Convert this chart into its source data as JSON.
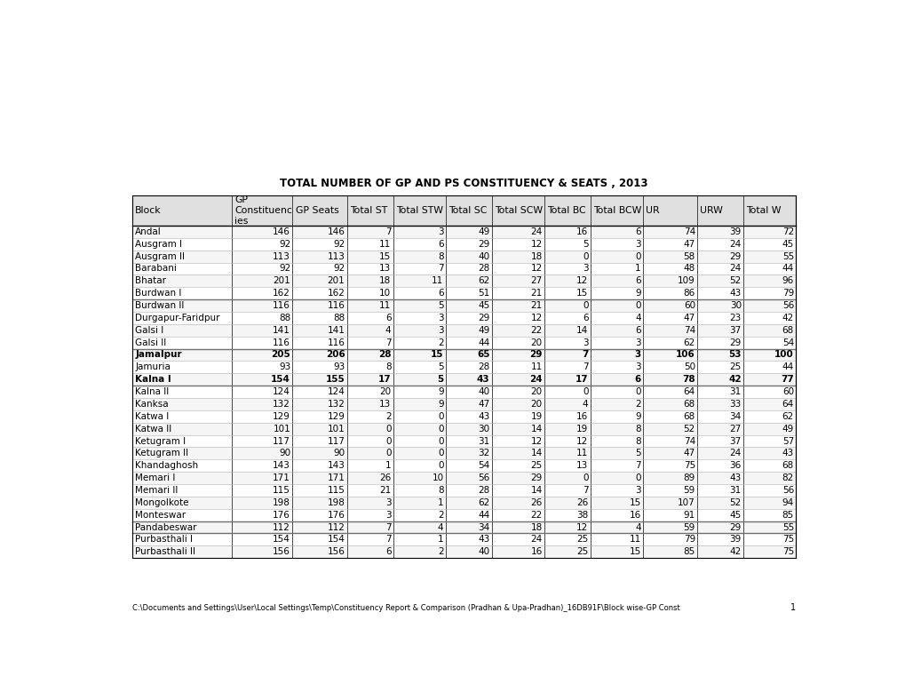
{
  "title": "TOTAL NUMBER OF GP AND PS CONSTITUENCY & SEATS , 2013",
  "footer": "C:\\Documents and Settings\\User\\Local Settings\\Temp\\Constituency Report & Comparison (Pradhan & Upa-Pradhan)_16DB91F\\Block wise-GP Const",
  "footer_page": "1",
  "rows": [
    [
      "Andal",
      146,
      146,
      7,
      3,
      49,
      24,
      16,
      6,
      74,
      39,
      72
    ],
    [
      "Ausgram I",
      92,
      92,
      11,
      6,
      29,
      12,
      5,
      3,
      47,
      24,
      45
    ],
    [
      "Ausgram II",
      113,
      113,
      15,
      8,
      40,
      18,
      0,
      0,
      58,
      29,
      55
    ],
    [
      "Barabani",
      92,
      92,
      13,
      7,
      28,
      12,
      3,
      1,
      48,
      24,
      44
    ],
    [
      "Bhatar",
      201,
      201,
      18,
      11,
      62,
      27,
      12,
      6,
      109,
      52,
      96
    ],
    [
      "Burdwan I",
      162,
      162,
      10,
      6,
      51,
      21,
      15,
      9,
      86,
      43,
      79
    ],
    [
      "Burdwan II",
      116,
      116,
      11,
      5,
      45,
      21,
      0,
      0,
      60,
      30,
      56
    ],
    [
      "Durgapur-Faridpur",
      88,
      88,
      6,
      3,
      29,
      12,
      6,
      4,
      47,
      23,
      42
    ],
    [
      "Galsi I",
      141,
      141,
      4,
      3,
      49,
      22,
      14,
      6,
      74,
      37,
      68
    ],
    [
      "Galsi II",
      116,
      116,
      7,
      2,
      44,
      20,
      3,
      3,
      62,
      29,
      54
    ],
    [
      "Jamalpur",
      205,
      206,
      28,
      15,
      65,
      29,
      7,
      3,
      106,
      53,
      100
    ],
    [
      "Jamuria",
      93,
      93,
      8,
      5,
      28,
      11,
      7,
      3,
      50,
      25,
      44
    ],
    [
      "Kalna I",
      154,
      155,
      17,
      5,
      43,
      24,
      17,
      6,
      78,
      42,
      77
    ],
    [
      "Kalna II",
      124,
      124,
      20,
      9,
      40,
      20,
      0,
      0,
      64,
      31,
      60
    ],
    [
      "Kanksa",
      132,
      132,
      13,
      9,
      47,
      20,
      4,
      2,
      68,
      33,
      64
    ],
    [
      "Katwa I",
      129,
      129,
      2,
      0,
      43,
      19,
      16,
      9,
      68,
      34,
      62
    ],
    [
      "Katwa II",
      101,
      101,
      0,
      0,
      30,
      14,
      19,
      8,
      52,
      27,
      49
    ],
    [
      "Ketugram I",
      117,
      117,
      0,
      0,
      31,
      12,
      12,
      8,
      74,
      37,
      57
    ],
    [
      "Ketugram II",
      90,
      90,
      0,
      0,
      32,
      14,
      11,
      5,
      47,
      24,
      43
    ],
    [
      "Khandaghosh",
      143,
      143,
      1,
      0,
      54,
      25,
      13,
      7,
      75,
      36,
      68
    ],
    [
      "Memari I",
      171,
      171,
      26,
      10,
      56,
      29,
      0,
      0,
      89,
      43,
      82
    ],
    [
      "Memari II",
      115,
      115,
      21,
      8,
      28,
      14,
      7,
      3,
      59,
      31,
      56
    ],
    [
      "Mongolkote",
      198,
      198,
      3,
      1,
      62,
      26,
      26,
      15,
      107,
      52,
      94
    ],
    [
      "Monteswar",
      176,
      176,
      3,
      2,
      44,
      22,
      38,
      16,
      91,
      45,
      85
    ],
    [
      "Pandabeswar",
      112,
      112,
      7,
      4,
      34,
      18,
      12,
      4,
      59,
      29,
      55
    ],
    [
      "Purbasthali I",
      154,
      154,
      7,
      1,
      43,
      24,
      25,
      11,
      79,
      39,
      75
    ],
    [
      "Purbasthali II",
      156,
      156,
      6,
      2,
      40,
      16,
      25,
      15,
      85,
      42,
      75
    ]
  ],
  "bold_rows": [
    "Jamalpur",
    "Kalna I"
  ],
  "thick_line_rows": [
    "Burdwan I",
    "Galsi II",
    "Kalna I",
    "Monteswar",
    "Pandabeswar"
  ],
  "bg_color": "#ffffff",
  "title_fontsize": 8.5,
  "cell_fontsize": 7.5,
  "header_fontsize": 7.8
}
